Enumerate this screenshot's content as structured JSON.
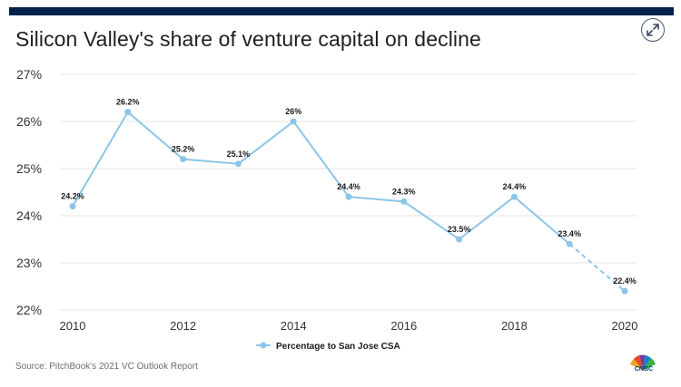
{
  "title": "Silicon Valley's share of venture capital on decline",
  "source": "Source: PitchBook's 2021 VC Outlook Report",
  "logo_text": "CNBC",
  "expand_icon": "expand-arrows-icon",
  "colors": {
    "line": "#8cc5e8",
    "topbar": "#002147",
    "text": "#1f1f1f",
    "grid": "#e6e6e6"
  },
  "chart_data": {
    "type": "line",
    "title": "Silicon Valley's share of venture capital on decline",
    "x": [
      2010,
      2011,
      2012,
      2013,
      2014,
      2015,
      2016,
      2017,
      2018,
      2019,
      2020
    ],
    "series": [
      {
        "name": "Percentage to San Jose CSA",
        "values": [
          24.2,
          26.2,
          25.2,
          25.1,
          26.0,
          24.4,
          24.3,
          23.5,
          24.4,
          23.4,
          22.4
        ],
        "labels": [
          "24.2%",
          "26.2%",
          "25.2%",
          "25.1%",
          "26%",
          "24.4%",
          "24.3%",
          "23.5%",
          "24.4%",
          "23.4%",
          "22.4%"
        ],
        "dashed_last_segment": true
      }
    ],
    "xticks": [
      "2010",
      "2012",
      "2014",
      "2016",
      "2018",
      "2020"
    ],
    "yticks": [
      "22%",
      "23%",
      "24%",
      "25%",
      "26%",
      "27%"
    ],
    "ylim": [
      22,
      27
    ],
    "xlim": [
      2010,
      2020
    ],
    "grid": true,
    "legend": "bottom-center"
  }
}
